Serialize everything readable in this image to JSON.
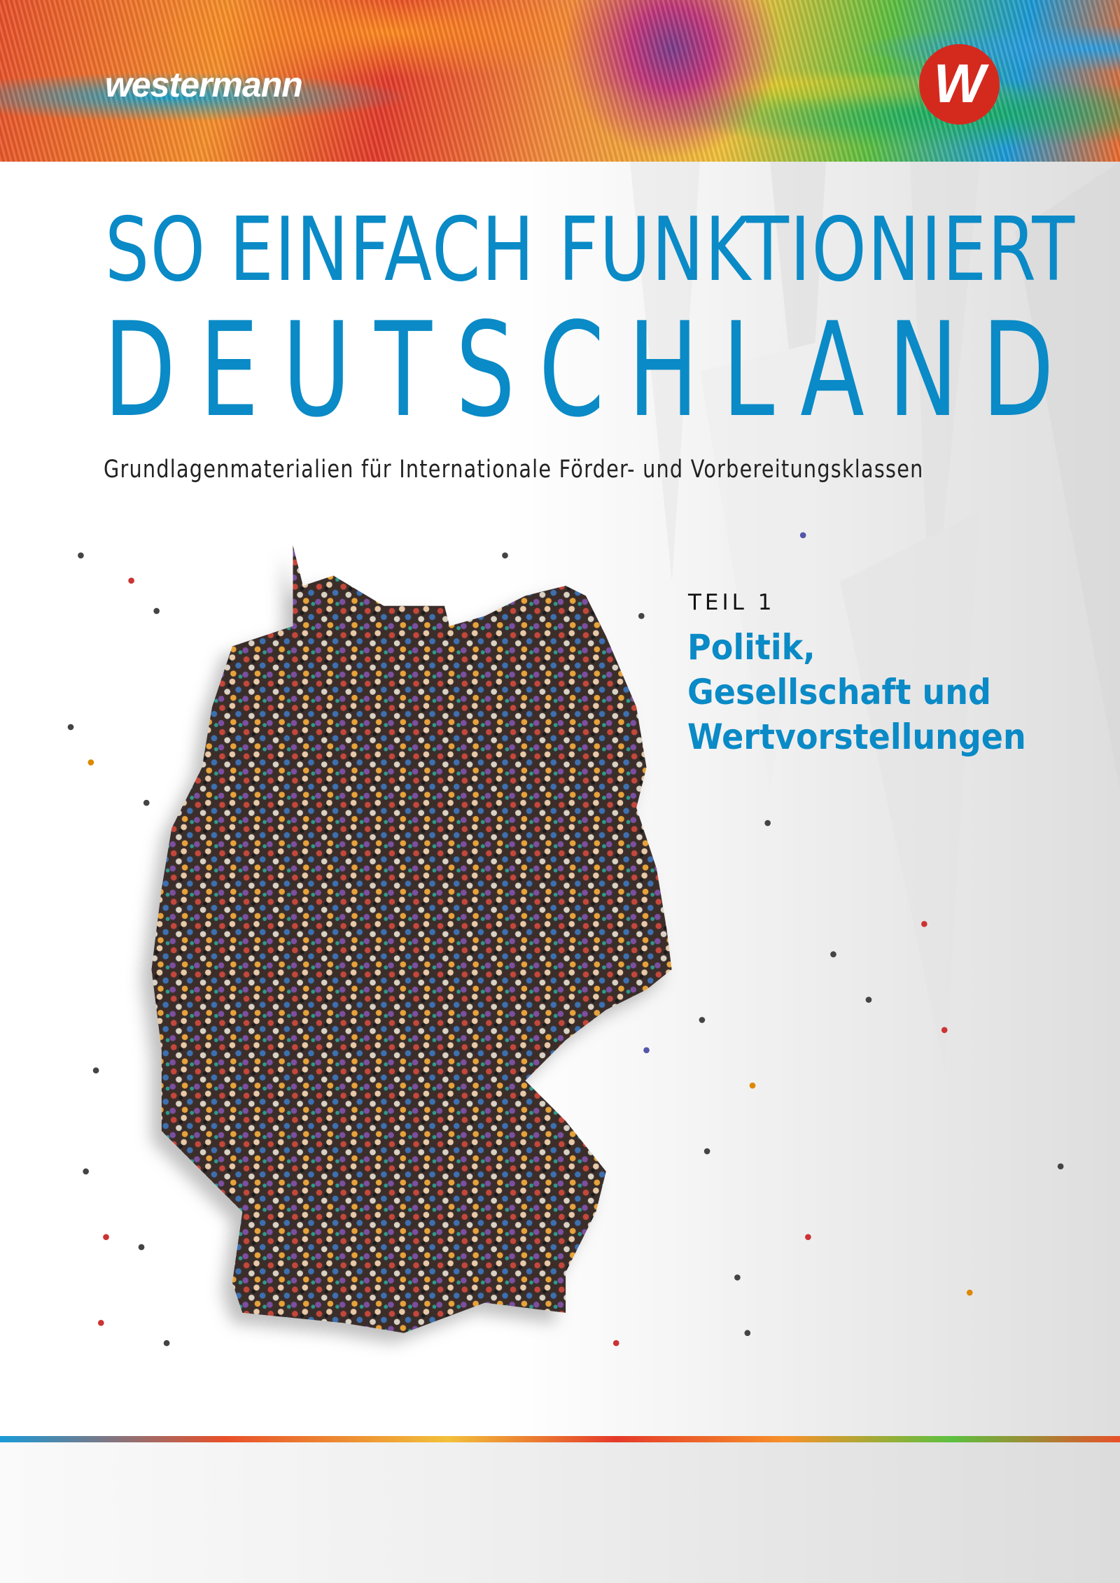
{
  "header": {
    "publisher": "westermann",
    "logo_letter": "W",
    "logo_color": "#d42a1e"
  },
  "title": {
    "line1": "SO EINFACH FUNKTIONIERT",
    "line2": "DEUTSCHLAND",
    "color": "#0a8ac6"
  },
  "subtitle": "Grundlagenmaterialien für Internationale Förder- und Vorbereitungsklassen",
  "part": {
    "label": "TEIL 1",
    "title_lines": [
      "Politik,",
      "Gesellschaft und",
      "Wertvorstellungen"
    ]
  },
  "cover_image": "crowd-forming-map-of-germany"
}
